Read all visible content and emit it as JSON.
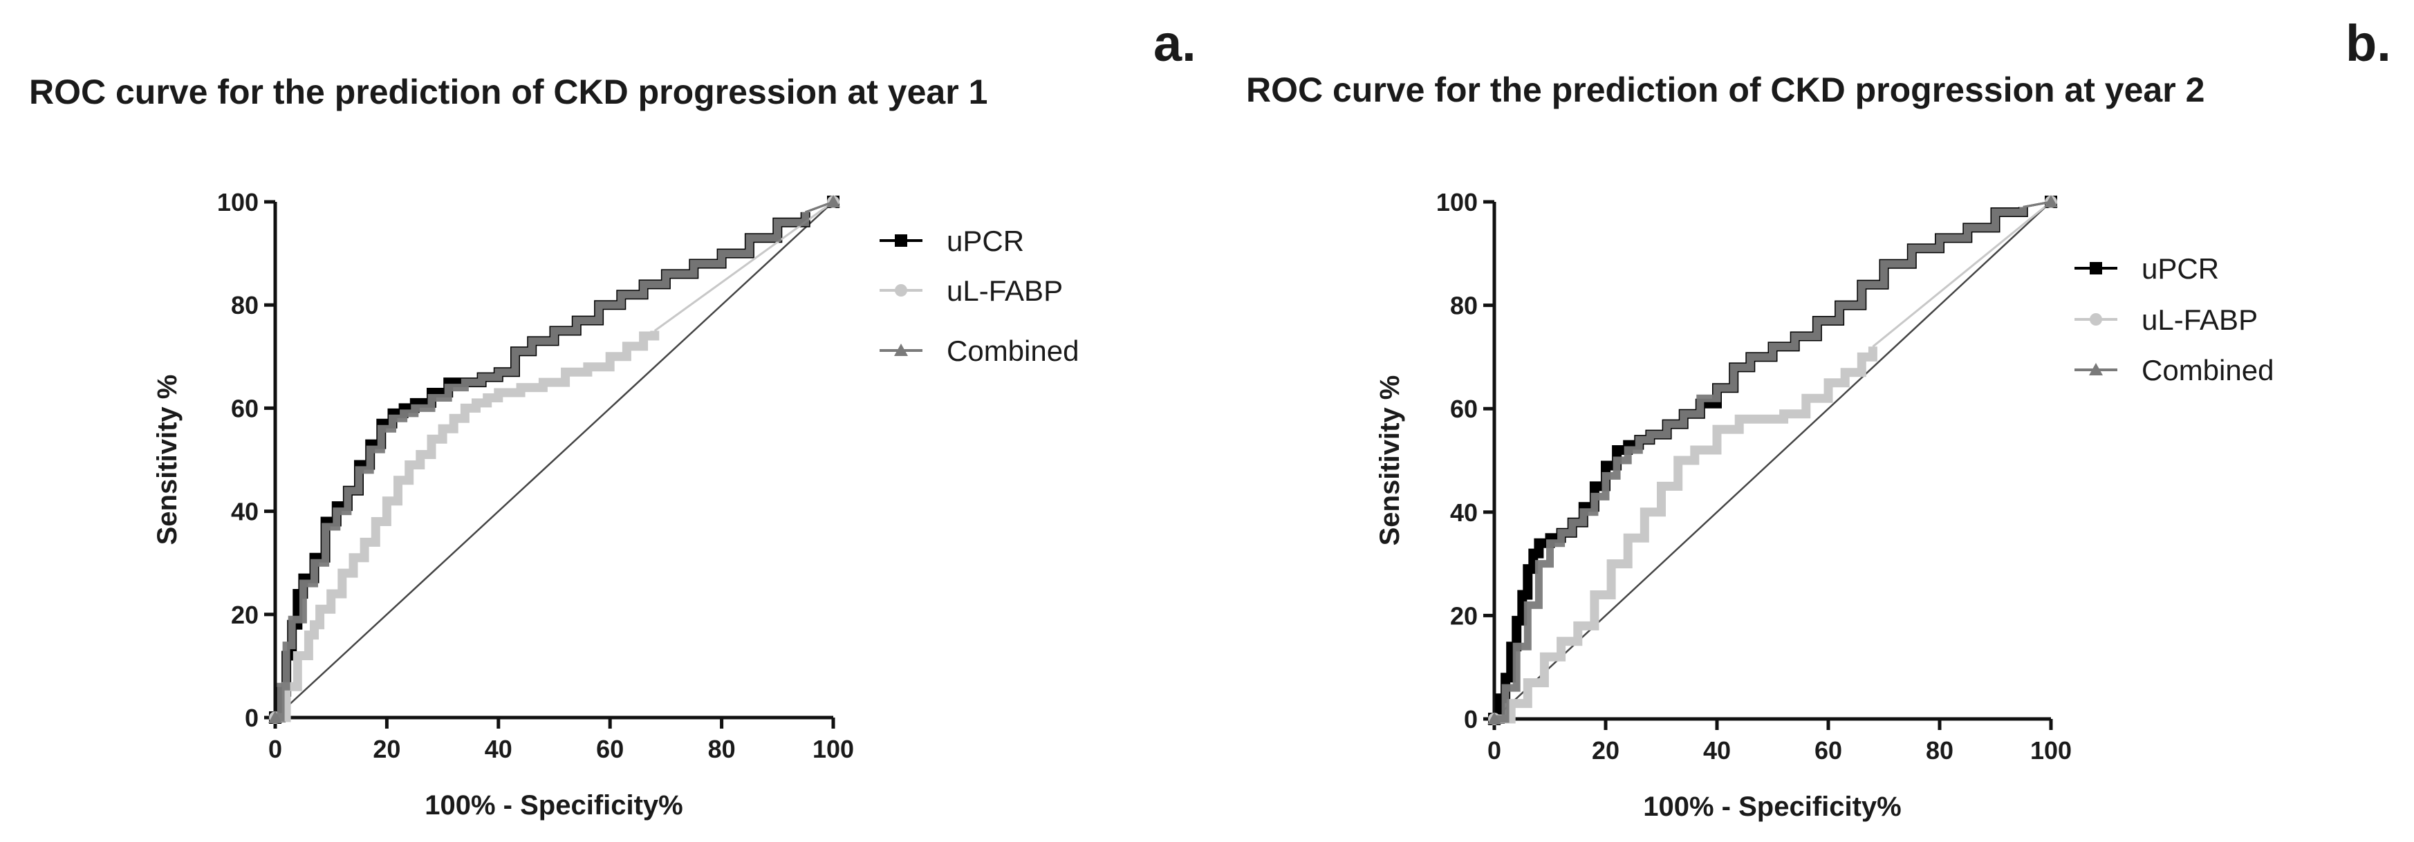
{
  "chart_data": [
    {
      "type": "line",
      "panel_label": "a.",
      "title": "ROC curve for the prediction of CKD progression at year 1",
      "xlabel": "100% - Specificity%",
      "ylabel": "Sensitivity %",
      "xlim": [
        0,
        100
      ],
      "ylim": [
        0,
        100
      ],
      "xticks": [
        "0",
        "20",
        "40",
        "60",
        "80",
        "100"
      ],
      "yticks": [
        "0",
        "20",
        "40",
        "60",
        "80",
        "100"
      ],
      "legend_position": "right",
      "reference_line": {
        "x": [
          0,
          100
        ],
        "y": [
          0,
          100
        ]
      },
      "series": [
        {
          "name": "uPCR",
          "color": "#000000",
          "marker": "square",
          "x": [
            0,
            1,
            2,
            3,
            4,
            5,
            7,
            9,
            11,
            13,
            15,
            17,
            19,
            21,
            23,
            25,
            28,
            31,
            34,
            37,
            40,
            43,
            46,
            50,
            54,
            58,
            62,
            66,
            70,
            75,
            80,
            85,
            90,
            95,
            100
          ],
          "y": [
            0,
            5,
            12,
            18,
            24,
            27,
            31,
            38,
            41,
            44,
            49,
            53,
            57,
            59,
            60,
            61,
            63,
            65,
            65,
            66,
            67,
            71,
            73,
            75,
            77,
            80,
            82,
            84,
            86,
            88,
            90,
            93,
            96,
            98,
            100
          ]
        },
        {
          "name": "uL-FABP",
          "color": "#c8c8c8",
          "marker": "circle",
          "x": [
            0,
            2,
            4,
            6,
            7,
            8,
            10,
            12,
            14,
            16,
            18,
            20,
            22,
            24,
            26,
            28,
            30,
            32,
            34,
            36,
            38,
            40,
            44,
            48,
            52,
            56,
            60,
            63,
            66,
            68,
            100
          ],
          "y": [
            0,
            6,
            12,
            16,
            18,
            21,
            24,
            28,
            31,
            34,
            38,
            42,
            46,
            49,
            51,
            54,
            56,
            58,
            60,
            61,
            62,
            63,
            64,
            65,
            67,
            68,
            70,
            72,
            74,
            75,
            100
          ]
        },
        {
          "name": "Combined",
          "color": "#7a7a7a",
          "marker": "triangle",
          "x": [
            0,
            1,
            2,
            3,
            5,
            7,
            9,
            11,
            13,
            15,
            17,
            19,
            21,
            23,
            25,
            28,
            31,
            34,
            37,
            40,
            43,
            46,
            50,
            54,
            58,
            62,
            66,
            70,
            75,
            80,
            85,
            90,
            95,
            100
          ],
          "y": [
            0,
            6,
            14,
            19,
            26,
            30,
            37,
            40,
            44,
            48,
            52,
            56,
            58,
            59,
            60,
            62,
            64,
            65,
            66,
            67,
            71,
            73,
            75,
            77,
            80,
            82,
            84,
            86,
            88,
            90,
            93,
            96,
            98,
            100
          ]
        }
      ]
    },
    {
      "type": "line",
      "panel_label": "b.",
      "title": "ROC curve for the prediction of CKD progression at year 2",
      "xlabel": "100% - Specificity%",
      "ylabel": "Sensitivity %",
      "xlim": [
        0,
        100
      ],
      "ylim": [
        0,
        100
      ],
      "xticks": [
        "0",
        "20",
        "40",
        "60",
        "80",
        "100"
      ],
      "yticks": [
        "0",
        "20",
        "40",
        "60",
        "80",
        "100"
      ],
      "legend_position": "right",
      "reference_line": {
        "x": [
          0,
          100
        ],
        "y": [
          0,
          100
        ]
      },
      "series": [
        {
          "name": "uPCR",
          "color": "#000000",
          "marker": "square",
          "x": [
            0,
            1,
            2,
            3,
            4,
            5,
            6,
            7,
            8,
            10,
            12,
            14,
            16,
            18,
            20,
            22,
            24,
            26,
            28,
            31,
            34,
            37,
            40,
            43,
            46,
            50,
            54,
            58,
            62,
            66,
            70,
            75,
            80,
            85,
            90,
            95,
            100
          ],
          "y": [
            0,
            4,
            8,
            14,
            19,
            24,
            29,
            32,
            34,
            35,
            36,
            38,
            41,
            45,
            49,
            52,
            53,
            54,
            55,
            57,
            59,
            61,
            64,
            68,
            70,
            72,
            74,
            77,
            80,
            84,
            88,
            91,
            93,
            95,
            98,
            99,
            100
          ]
        },
        {
          "name": "uL-FABP",
          "color": "#c8c8c8",
          "marker": "circle",
          "x": [
            0,
            3,
            6,
            9,
            12,
            15,
            18,
            21,
            24,
            27,
            30,
            33,
            36,
            40,
            44,
            48,
            52,
            56,
            60,
            63,
            66,
            68,
            100
          ],
          "y": [
            0,
            3,
            7,
            12,
            15,
            18,
            24,
            30,
            35,
            40,
            45,
            50,
            52,
            56,
            58,
            58,
            59,
            62,
            65,
            67,
            70,
            72,
            100
          ]
        },
        {
          "name": "Combined",
          "color": "#7a7a7a",
          "marker": "triangle",
          "x": [
            0,
            2,
            4,
            6,
            8,
            10,
            12,
            14,
            16,
            18,
            20,
            22,
            24,
            26,
            28,
            31,
            34,
            37,
            40,
            43,
            46,
            50,
            54,
            58,
            62,
            66,
            70,
            75,
            80,
            85,
            90,
            95,
            100
          ],
          "y": [
            0,
            6,
            14,
            22,
            30,
            34,
            36,
            38,
            40,
            43,
            47,
            50,
            52,
            54,
            55,
            57,
            59,
            62,
            64,
            68,
            70,
            72,
            74,
            77,
            80,
            84,
            88,
            91,
            93,
            95,
            98,
            99,
            100
          ]
        }
      ]
    }
  ]
}
